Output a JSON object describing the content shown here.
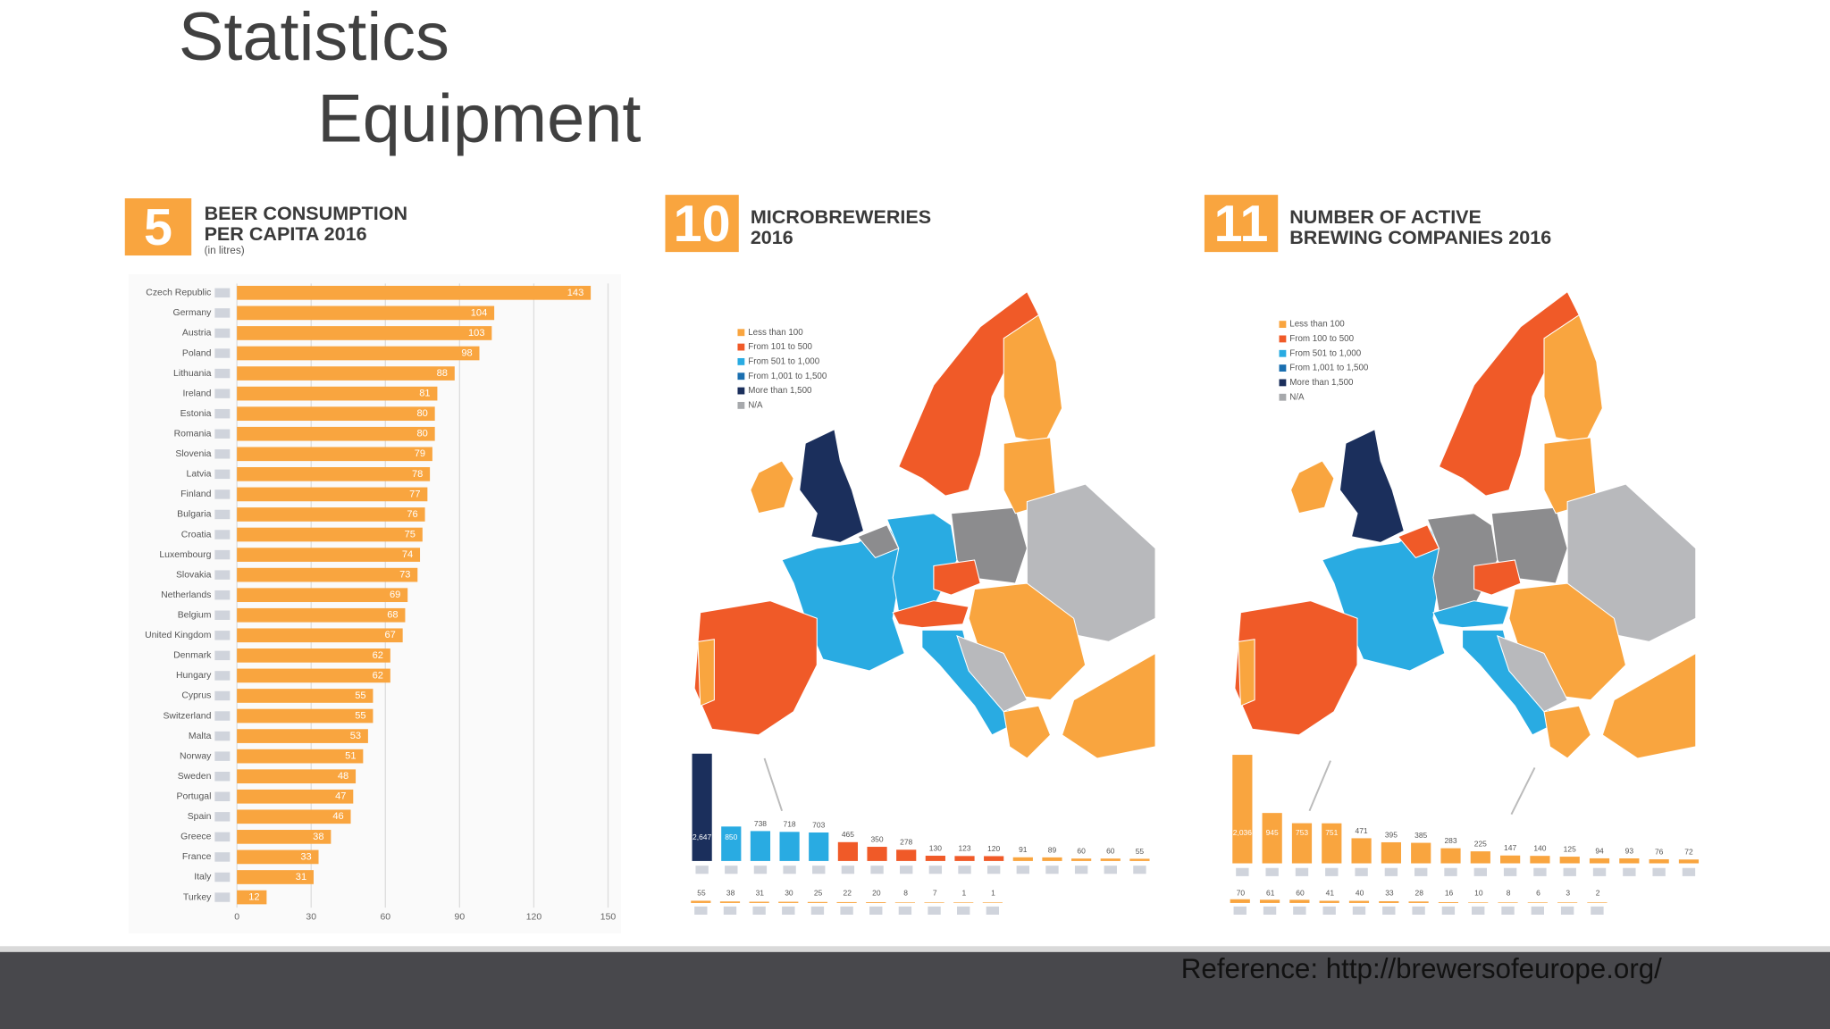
{
  "slide": {
    "title": "Statistics",
    "subtitle": "Equipment",
    "reference": "Reference: http://brewersofeurope.org/"
  },
  "chart_data": [
    {
      "type": "hbar",
      "number": "5",
      "title": [
        "BEER CONSUMPTION",
        "PER CAPITA 2016"
      ],
      "subtitle": "(in litres)",
      "categories": [
        "Czech Republic",
        "Germany",
        "Austria",
        "Poland",
        "Lithuania",
        "Ireland",
        "Estonia",
        "Romania",
        "Slovenia",
        "Latvia",
        "Finland",
        "Bulgaria",
        "Croatia",
        "Luxembourg",
        "Slovakia",
        "Netherlands",
        "Belgium",
        "United Kingdom",
        "Denmark",
        "Hungary",
        "Cyprus",
        "Switzerland",
        "Malta",
        "Norway",
        "Sweden",
        "Portugal",
        "Spain",
        "Greece",
        "France",
        "Italy",
        "Turkey"
      ],
      "values": [
        143,
        104,
        103,
        98,
        88,
        81,
        80,
        80,
        79,
        78,
        77,
        76,
        75,
        74,
        73,
        69,
        68,
        67,
        62,
        62,
        55,
        55,
        53,
        51,
        48,
        47,
        46,
        38,
        33,
        31,
        12
      ],
      "color": "#f9a53f",
      "xlim": [
        0,
        150
      ],
      "xticks": [
        0,
        30,
        60,
        90,
        120,
        150
      ],
      "grid": true
    },
    {
      "type": "strip",
      "number": "10",
      "title": [
        "MICROBREWERIES",
        "2016"
      ],
      "legend": {
        "labels": [
          "Less than 100",
          "From 101 to 500",
          "From 501 to 1,000",
          "From 1,001 to 1,500",
          "More than 1,500",
          "N/A"
        ],
        "colors": [
          "#f9a53f",
          "#f05a28",
          "#29abe2",
          "#1a6fb0",
          "#1b2f5c",
          "#a7a9ac"
        ]
      },
      "rows": [
        {
          "values": [
            2647,
            850,
            738,
            718,
            703,
            465,
            350,
            278,
            130,
            123,
            120,
            91,
            89,
            60,
            60,
            55
          ],
          "value_labels": [
            "2,647",
            "850",
            "738",
            "718",
            "703",
            "465",
            "350",
            "278",
            "130",
            "123",
            "120",
            "91",
            "89",
            "60",
            "60",
            "55"
          ],
          "colors": [
            "#1b2f5c",
            "#29abe2",
            "#29abe2",
            "#29abe2",
            "#29abe2",
            "#f05a28",
            "#f05a28",
            "#f05a28",
            "#f05a28",
            "#f05a28",
            "#f05a28",
            "#f9a53f",
            "#f9a53f",
            "#f9a53f",
            "#f9a53f",
            "#f9a53f"
          ]
        },
        {
          "values": [
            55,
            38,
            31,
            30,
            25,
            22,
            20,
            8,
            7,
            1,
            1
          ],
          "color": "#f9a53f"
        }
      ]
    },
    {
      "type": "strip",
      "number": "11",
      "title": [
        "NUMBER OF ACTIVE",
        "BREWING COMPANIES 2016"
      ],
      "legend": {
        "labels": [
          "Less than 100",
          "From 100 to 500",
          "From 501 to 1,000",
          "From 1,001 to 1,500",
          "More than 1,500",
          "N/A"
        ],
        "colors": [
          "#f9a53f",
          "#f05a28",
          "#29abe2",
          "#1a6fb0",
          "#1b2f5c",
          "#a7a9ac"
        ]
      },
      "rows": [
        {
          "values": [
            2036,
            945,
            753,
            751,
            471,
            395,
            385,
            283,
            225,
            147,
            140,
            125,
            94,
            93,
            76,
            72
          ],
          "value_labels": [
            "2,036",
            "945",
            "753",
            "751",
            "471",
            "395",
            "385",
            "283",
            "225",
            "147",
            "140",
            "125",
            "94",
            "93",
            "76",
            "72"
          ],
          "color": "#f9a53f"
        },
        {
          "values": [
            70,
            61,
            60,
            41,
            40,
            33,
            28,
            16,
            10,
            8,
            6,
            3,
            2
          ],
          "color": "#f9a53f"
        }
      ]
    }
  ]
}
